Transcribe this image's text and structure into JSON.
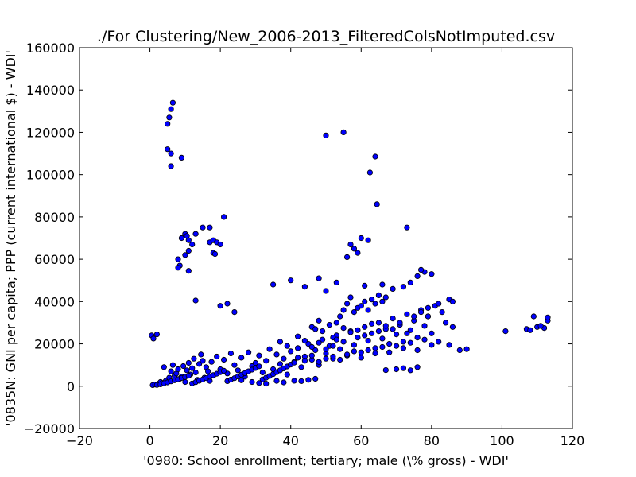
{
  "chart_data": {
    "type": "scatter",
    "title": "./For Clustering/New_2006-2013_FilteredColsNotImputed.csv",
    "xlabel": "'0980: School enrollment; tertiary; male  (\\% gross) - WDI'",
    "ylabel": "'0835N: GNI per capita; PPP  (current international $) - WDI'",
    "xlim": [
      -20,
      120
    ],
    "ylim": [
      -20000,
      160000
    ],
    "x_ticks": [
      -20,
      0,
      20,
      40,
      60,
      80,
      100,
      120
    ],
    "y_ticks": [
      -20000,
      0,
      20000,
      40000,
      60000,
      80000,
      100000,
      120000,
      140000,
      160000
    ],
    "x_tick_labels": [
      "−20",
      "0",
      "20",
      "40",
      "60",
      "80",
      "100",
      "120"
    ],
    "y_tick_labels": [
      "−20000",
      "0",
      "20000",
      "40000",
      "60000",
      "80000",
      "100000",
      "120000",
      "140000",
      "160000"
    ],
    "marker_color": "#0000ff",
    "marker_edge_color": "#000000",
    "grid": false,
    "points": [
      [
        0.5,
        24000
      ],
      [
        1,
        22500
      ],
      [
        2,
        24500
      ],
      [
        0.8,
        500
      ],
      [
        1.5,
        800
      ],
      [
        2.5,
        1200
      ],
      [
        3,
        2000
      ],
      [
        3.5,
        1500
      ],
      [
        4,
        9000
      ],
      [
        4.5,
        2500
      ],
      [
        5,
        3000
      ],
      [
        5.5,
        4000
      ],
      [
        6,
        7000
      ],
      [
        6.5,
        10000
      ],
      [
        7,
        5000
      ],
      [
        7.5,
        6000
      ],
      [
        8,
        8000
      ],
      [
        8.5,
        3500
      ],
      [
        9,
        4500
      ],
      [
        9.5,
        9500
      ],
      [
        10,
        2000
      ],
      [
        10.5,
        7500
      ],
      [
        11,
        11000
      ],
      [
        11.5,
        5500
      ],
      [
        12,
        8500
      ],
      [
        12.5,
        13000
      ],
      [
        13,
        6500
      ],
      [
        13.5,
        3000
      ],
      [
        14,
        10500
      ],
      [
        14.5,
        15000
      ],
      [
        15,
        12000
      ],
      [
        15.5,
        4000
      ],
      [
        16,
        9000
      ],
      [
        16.5,
        7000
      ],
      [
        17,
        2500
      ],
      [
        17.5,
        11500
      ],
      [
        18,
        5000
      ],
      [
        19,
        14000
      ],
      [
        20,
        8000
      ],
      [
        21,
        12500
      ],
      [
        22,
        6000
      ],
      [
        23,
        15500
      ],
      [
        24,
        10000
      ],
      [
        25,
        7500
      ],
      [
        26,
        13500
      ],
      [
        27,
        4500
      ],
      [
        28,
        16000
      ],
      [
        29,
        9500
      ],
      [
        30,
        11000
      ],
      [
        31,
        14500
      ],
      [
        32,
        6500
      ],
      [
        33,
        12000
      ],
      [
        34,
        17500
      ],
      [
        35,
        8000
      ],
      [
        36,
        15000
      ],
      [
        37,
        10500
      ],
      [
        38,
        13000
      ],
      [
        39,
        5500
      ],
      [
        40,
        16500
      ],
      [
        41,
        11500
      ],
      [
        42,
        18000
      ],
      [
        43,
        9000
      ],
      [
        44,
        14000
      ],
      [
        45,
        20000
      ],
      [
        46,
        12500
      ],
      [
        47,
        17000
      ],
      [
        48,
        10000
      ],
      [
        49,
        22000
      ],
      [
        50,
        15500
      ],
      [
        51,
        19000
      ],
      [
        52,
        13000
      ],
      [
        53,
        24000
      ],
      [
        54,
        17500
      ],
      [
        55,
        21000
      ],
      [
        56,
        14500
      ],
      [
        57,
        26000
      ],
      [
        58,
        19500
      ],
      [
        59,
        23000
      ],
      [
        60,
        16000
      ],
      [
        61,
        28000
      ],
      [
        62,
        21500
      ],
      [
        63,
        25000
      ],
      [
        64,
        18000
      ],
      [
        65,
        30000
      ],
      [
        66,
        22500
      ],
      [
        67,
        27000
      ],
      [
        68,
        20000
      ],
      [
        69,
        32000
      ],
      [
        70,
        24500
      ],
      [
        71,
        29000
      ],
      [
        72,
        21000
      ],
      [
        73,
        34000
      ],
      [
        74,
        26500
      ],
      [
        75,
        31000
      ],
      [
        76,
        23000
      ],
      [
        77,
        36000
      ],
      [
        78,
        28500
      ],
      [
        79,
        33000
      ],
      [
        80,
        25000
      ],
      [
        81,
        38000
      ],
      [
        2,
        600
      ],
      [
        3,
        900
      ],
      [
        4,
        1400
      ],
      [
        5,
        1800
      ],
      [
        6,
        2300
      ],
      [
        7,
        2800
      ],
      [
        8,
        3300
      ],
      [
        9,
        3900
      ],
      [
        10,
        4400
      ],
      [
        11,
        5000
      ],
      [
        12,
        1300
      ],
      [
        13,
        1900
      ],
      [
        14,
        2600
      ],
      [
        15,
        3200
      ],
      [
        16,
        3800
      ],
      [
        17,
        4500
      ],
      [
        18,
        5200
      ],
      [
        19,
        5900
      ],
      [
        20,
        6600
      ],
      [
        21,
        7300
      ],
      [
        22,
        2400
      ],
      [
        23,
        3100
      ],
      [
        24,
        3800
      ],
      [
        25,
        4600
      ],
      [
        26,
        5400
      ],
      [
        27,
        6200
      ],
      [
        28,
        7000
      ],
      [
        29,
        7800
      ],
      [
        30,
        8600
      ],
      [
        31,
        9400
      ],
      [
        32,
        3200
      ],
      [
        33,
        4000
      ],
      [
        34,
        4800
      ],
      [
        35,
        5700
      ],
      [
        36,
        6600
      ],
      [
        37,
        7500
      ],
      [
        38,
        8400
      ],
      [
        39,
        9300
      ],
      [
        40,
        10200
      ],
      [
        41,
        11100
      ],
      [
        5,
        112000
      ],
      [
        6,
        110000
      ],
      [
        6,
        104000
      ],
      [
        5,
        124000
      ],
      [
        5.5,
        127000
      ],
      [
        6,
        131000
      ],
      [
        6.5,
        134000
      ],
      [
        9,
        108000
      ],
      [
        9,
        70000
      ],
      [
        10,
        72000
      ],
      [
        10.5,
        71000
      ],
      [
        11,
        69000
      ],
      [
        12,
        67000
      ],
      [
        13,
        72000
      ],
      [
        15,
        75000
      ],
      [
        17,
        68000
      ],
      [
        18,
        69000
      ],
      [
        19,
        68000
      ],
      [
        20,
        67000
      ],
      [
        21,
        80000
      ],
      [
        8,
        60000
      ],
      [
        8.5,
        57000
      ],
      [
        8,
        56000
      ],
      [
        10,
        62000
      ],
      [
        11,
        64000
      ],
      [
        11,
        54500
      ],
      [
        18,
        63000
      ],
      [
        18.5,
        62500
      ],
      [
        17,
        75000
      ],
      [
        13,
        40500
      ],
      [
        20,
        38000
      ],
      [
        22,
        39000
      ],
      [
        24,
        35000
      ],
      [
        50,
        118500
      ],
      [
        55,
        120000
      ],
      [
        62.5,
        101000
      ],
      [
        64,
        108500
      ],
      [
        64.5,
        86000
      ],
      [
        73,
        75000
      ],
      [
        57,
        67000
      ],
      [
        58,
        65000
      ],
      [
        60,
        70000
      ],
      [
        62,
        69000
      ],
      [
        59,
        63000
      ],
      [
        56,
        61000
      ],
      [
        85,
        41000
      ],
      [
        86,
        40000
      ],
      [
        82,
        39000
      ],
      [
        83,
        35000
      ],
      [
        79,
        33000
      ],
      [
        84,
        30000
      ],
      [
        86,
        28000
      ],
      [
        88,
        17000
      ],
      [
        90,
        17500
      ],
      [
        85,
        19500
      ],
      [
        101,
        26000
      ],
      [
        107,
        27000
      ],
      [
        109,
        33000
      ],
      [
        110,
        28000
      ],
      [
        112,
        27500
      ],
      [
        113,
        31000
      ],
      [
        113,
        32500
      ],
      [
        108,
        26500
      ],
      [
        111,
        28500
      ],
      [
        35,
        48000
      ],
      [
        40,
        50000
      ],
      [
        44,
        47000
      ],
      [
        48,
        51000
      ],
      [
        50,
        45000
      ],
      [
        53,
        49000
      ],
      [
        61,
        47500
      ],
      [
        66,
        48000
      ],
      [
        69,
        46000
      ],
      [
        72,
        47000
      ],
      [
        74,
        49000
      ],
      [
        76,
        52000
      ],
      [
        78,
        54000
      ],
      [
        80,
        53000
      ],
      [
        77,
        55000
      ],
      [
        70,
        8000
      ],
      [
        72,
        8500
      ],
      [
        74,
        7500
      ],
      [
        76,
        9000
      ],
      [
        67,
        7600
      ],
      [
        29,
        2000
      ],
      [
        31,
        1500
      ],
      [
        36,
        2500
      ],
      [
        38,
        1800
      ],
      [
        41,
        2600
      ],
      [
        43,
        2400
      ],
      [
        45,
        3000
      ],
      [
        47,
        3500
      ],
      [
        33,
        1200
      ],
      [
        26,
        2800
      ],
      [
        52,
        23000
      ],
      [
        53,
        30000
      ],
      [
        54,
        33000
      ],
      [
        55,
        36000
      ],
      [
        56,
        39000
      ],
      [
        57,
        42000
      ],
      [
        58,
        35000
      ],
      [
        59,
        37000
      ],
      [
        60,
        38000
      ],
      [
        61,
        40000
      ],
      [
        62,
        36000
      ],
      [
        63,
        41000
      ],
      [
        64,
        39000
      ],
      [
        65,
        43000
      ],
      [
        66,
        40000
      ],
      [
        67,
        42000
      ],
      [
        46,
        28000
      ],
      [
        47,
        27000
      ],
      [
        48,
        31000
      ],
      [
        49,
        26000
      ],
      [
        51,
        29000
      ],
      [
        53,
        22000
      ],
      [
        55,
        27500
      ],
      [
        57,
        25500
      ],
      [
        59,
        26500
      ],
      [
        61,
        24000
      ],
      [
        63,
        29500
      ],
      [
        65,
        26000
      ],
      [
        67,
        28500
      ],
      [
        69,
        27000
      ],
      [
        71,
        30000
      ],
      [
        73,
        25000
      ],
      [
        37,
        21000
      ],
      [
        39,
        19000
      ],
      [
        42,
        23500
      ],
      [
        44,
        21500
      ],
      [
        46,
        18500
      ],
      [
        48,
        20500
      ],
      [
        50,
        17500
      ],
      [
        52,
        19000
      ],
      [
        42,
        13500
      ],
      [
        44,
        12000
      ],
      [
        46,
        14500
      ],
      [
        48,
        11500
      ],
      [
        50,
        13000
      ],
      [
        52,
        14000
      ],
      [
        54,
        12500
      ],
      [
        56,
        15000
      ],
      [
        58,
        16500
      ],
      [
        60,
        13500
      ],
      [
        62,
        17000
      ],
      [
        64,
        15500
      ],
      [
        66,
        18500
      ],
      [
        68,
        16000
      ],
      [
        70,
        19000
      ],
      [
        72,
        18000
      ],
      [
        74,
        20500
      ],
      [
        76,
        17000
      ],
      [
        78,
        22000
      ],
      [
        80,
        19500
      ],
      [
        82,
        21000
      ],
      [
        75,
        33000
      ],
      [
        77,
        35000
      ],
      [
        79,
        37000
      ]
    ]
  }
}
